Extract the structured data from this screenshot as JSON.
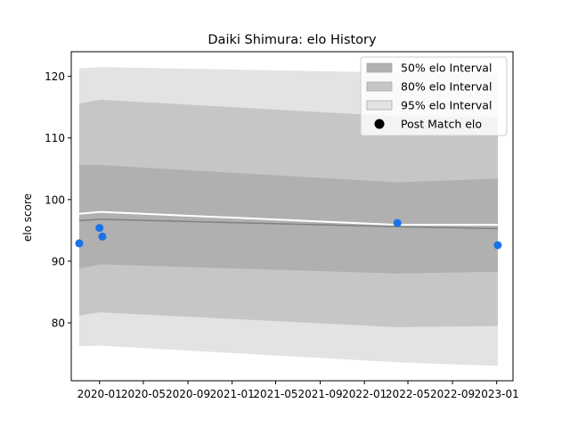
{
  "chart_data": {
    "type": "area",
    "title": "Daiki Shimura: elo History",
    "xlabel": "",
    "ylabel": "elo score",
    "xlim": [
      "2019-10-15",
      "2023-02-15"
    ],
    "ylim": [
      70.6,
      124.0
    ],
    "x_ticks": [
      "2020-01",
      "2020-05",
      "2020-09",
      "2021-01",
      "2021-05",
      "2021-09",
      "2022-01",
      "2022-05",
      "2022-09",
      "2023-01"
    ],
    "y_ticks": [
      80,
      90,
      100,
      110,
      120
    ],
    "grid": false,
    "legend_position": "upper right",
    "band_dates": [
      "2019-11-06",
      "2020-01-04",
      "2022-04-02",
      "2023-01-04"
    ],
    "bands": [
      {
        "name": "95% elo Interval",
        "color": "#e3e3e3",
        "lower": [
          76.2,
          76.3,
          73.6,
          73.0
        ],
        "upper": [
          121.3,
          121.5,
          120.6,
          120.4
        ]
      },
      {
        "name": "80% elo Interval",
        "color": "#c6c6c6",
        "lower": [
          81.2,
          81.7,
          79.3,
          79.5
        ],
        "upper": [
          115.6,
          116.2,
          113.5,
          113.4
        ]
      },
      {
        "name": "50% elo Interval",
        "color": "#b0b0b0",
        "lower": [
          88.8,
          89.5,
          88.0,
          88.3
        ],
        "upper": [
          105.6,
          105.6,
          102.8,
          103.4
        ]
      }
    ],
    "median_line": {
      "color": "#808080",
      "values": [
        96.6,
        96.8,
        95.6,
        95.3
      ]
    },
    "mean_line": {
      "color": "#ffffff",
      "values": [
        97.7,
        98.0,
        95.9,
        95.9
      ]
    },
    "series": [
      {
        "name": "Post Match elo",
        "color": "#1a73e8",
        "x": [
          "2019-11-06",
          "2020-01-01",
          "2020-01-09",
          "2022-04-02",
          "2023-01-04"
        ],
        "y": [
          92.9,
          95.4,
          94.0,
          96.2,
          92.6
        ]
      }
    ]
  }
}
